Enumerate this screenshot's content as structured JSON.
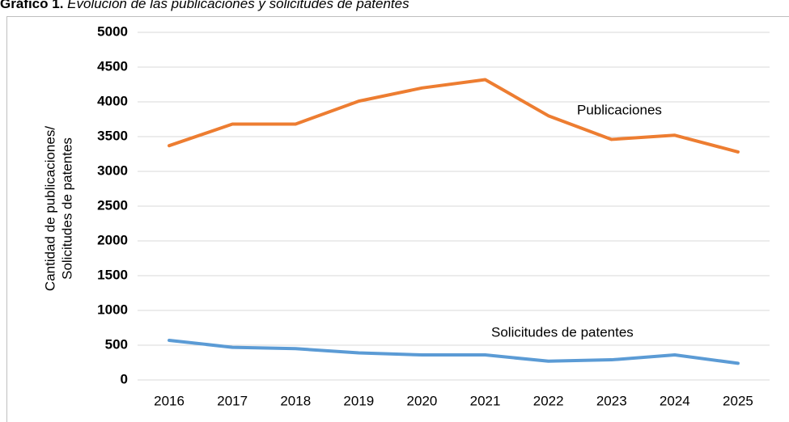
{
  "chart_data": {
    "type": "line",
    "title_label": "Gráfico 1.",
    "title": "Evolución de las publicaciones y solicitudes de patentes",
    "ylabel": [
      "Cantidad de publicaciones/",
      "Solicitudes de patentes"
    ],
    "categories": [
      "2016",
      "2017",
      "2018",
      "2019",
      "2020",
      "2021",
      "2022",
      "2023",
      "2024",
      "2025"
    ],
    "series": [
      {
        "name": "Publicaciones",
        "color": "#ed7d31",
        "values": [
          3370,
          3680,
          3680,
          4010,
          4200,
          4320,
          3800,
          3460,
          3520,
          3280
        ]
      },
      {
        "name": "Solicitudes de patentes",
        "color": "#5b9bd5",
        "values": [
          570,
          470,
          450,
          390,
          360,
          360,
          270,
          290,
          360,
          240
        ]
      }
    ],
    "ylim": [
      0,
      5000
    ],
    "yticks": [
      0,
      500,
      1000,
      1500,
      2000,
      2500,
      3000,
      3500,
      4000,
      4500,
      5000
    ],
    "grid": true
  }
}
